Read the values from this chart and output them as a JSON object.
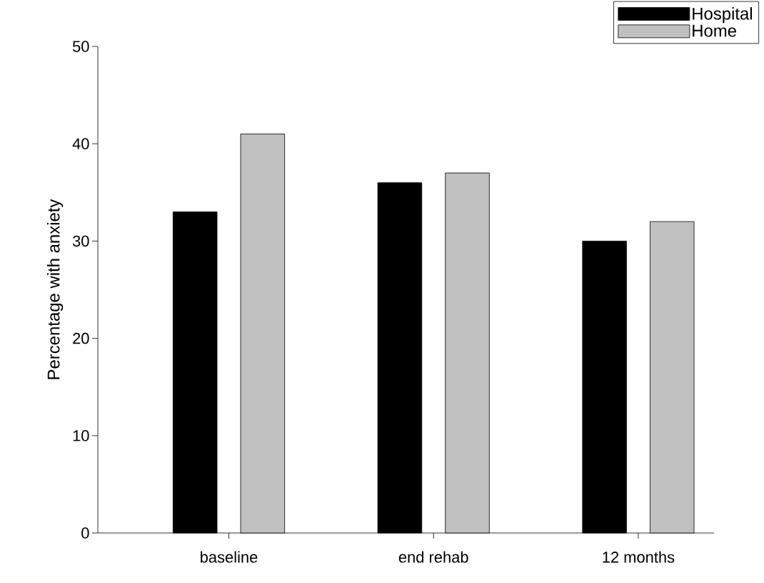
{
  "chart_data": {
    "type": "bar",
    "ylabel": "Percentage with anxiety",
    "categories": [
      "baseline",
      "end rehab",
      "12 months"
    ],
    "series": [
      {
        "name": "Hospital",
        "color": "#000000",
        "values": [
          33,
          36,
          30
        ]
      },
      {
        "name": "Home",
        "color": "#c0c0c0",
        "values": [
          41,
          37,
          32
        ]
      }
    ],
    "ylim": [
      0,
      50
    ],
    "yticks": [
      0,
      10,
      20,
      30,
      40,
      50
    ],
    "legend": "top right"
  }
}
